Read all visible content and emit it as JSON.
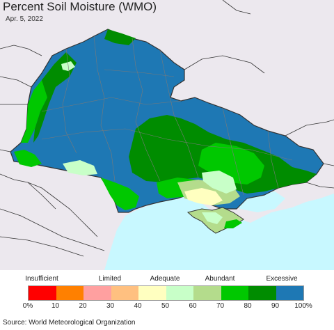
{
  "title": "Percent Soil Moisture (WMO)",
  "date": "Apr. 5, 2022",
  "source": "Source: World Meteorological Organization",
  "map": {
    "sea_color": "#c8f8ff",
    "outside_land_color": "#ece8ee",
    "border_color": "#333333",
    "oblast_line_color": "#7a7a7a"
  },
  "legend": {
    "categories": [
      "Insufficient",
      "Limited",
      "Adequate",
      "Abundant",
      "Excessive"
    ],
    "ticks": [
      "0%",
      "10",
      "20",
      "30",
      "40",
      "50",
      "60",
      "70",
      "80",
      "90",
      "100%"
    ],
    "colors": [
      "#ff0000",
      "#ff8000",
      "#ffa0a0",
      "#ffc080",
      "#ffffc0",
      "#c8ffc8",
      "#b4dc8c",
      "#00c800",
      "#008c00",
      "#1e78b4"
    ]
  }
}
